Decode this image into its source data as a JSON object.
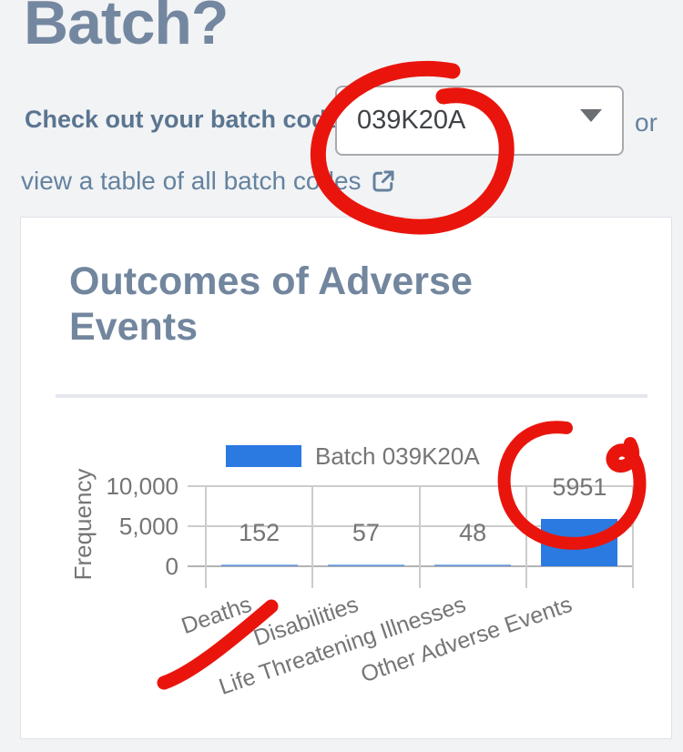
{
  "header": {
    "title": "Batch?"
  },
  "controls": {
    "prompt_label": "Check out your batch code",
    "dropdown_value": "039K20A",
    "or_label": "or",
    "link_label": "view a table of all batch codes"
  },
  "chart_data": {
    "type": "bar",
    "title": "Outcomes of Adverse Events",
    "categories": [
      "Deaths",
      "Disabilities",
      "Life Threatening Illnesses",
      "Other Adverse Events"
    ],
    "values": [
      152,
      57,
      48,
      5951
    ],
    "data_labels": [
      "152",
      "57",
      "48",
      "5951"
    ],
    "legend": {
      "label": "Batch 039K20A",
      "position": "top"
    },
    "ylabel": "Frequency",
    "xlabel": "",
    "yticks": [
      "0",
      "5,000",
      "10,000"
    ],
    "ylim": [
      0,
      10000
    ],
    "grid": true,
    "bar_color": "#2a7ae2",
    "axis_text_color": "#757575"
  },
  "annotations": {
    "ink_color": "#e9150d",
    "marks": [
      "circle-around-batch-code-dropdown",
      "circle-around-5951-value",
      "underline-below-deaths-label"
    ]
  }
}
